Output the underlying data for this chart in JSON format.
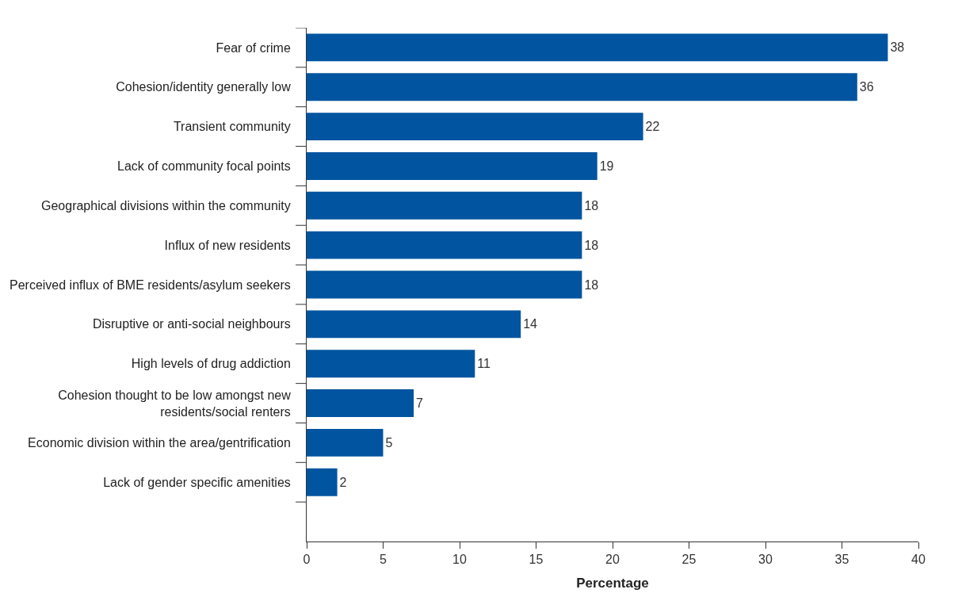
{
  "chart_data": {
    "type": "bar",
    "orientation": "horizontal",
    "xlabel": "Percentage",
    "categories": [
      "Fear of crime",
      "Cohesion/identity generally low",
      "Transient community",
      "Lack of community focal points",
      "Geographical divisions within the community",
      "Influx of new residents",
      "Perceived influx of BME residents/asylum seekers",
      "Disruptive or anti-social neighbours",
      "High levels of drug addiction",
      "Cohesion thought to be low amongst new residents/social renters",
      "Economic division within the area/gentrification",
      "Lack of gender specific amenities"
    ],
    "values": [
      38,
      36,
      22,
      19,
      18,
      18,
      18,
      14,
      11,
      7,
      5,
      2
    ],
    "color": "#0054a0",
    "xlim": [
      0,
      40
    ],
    "xticks": [
      0,
      5,
      10,
      15,
      20,
      25,
      30,
      35,
      40
    ],
    "data_labels": true
  }
}
